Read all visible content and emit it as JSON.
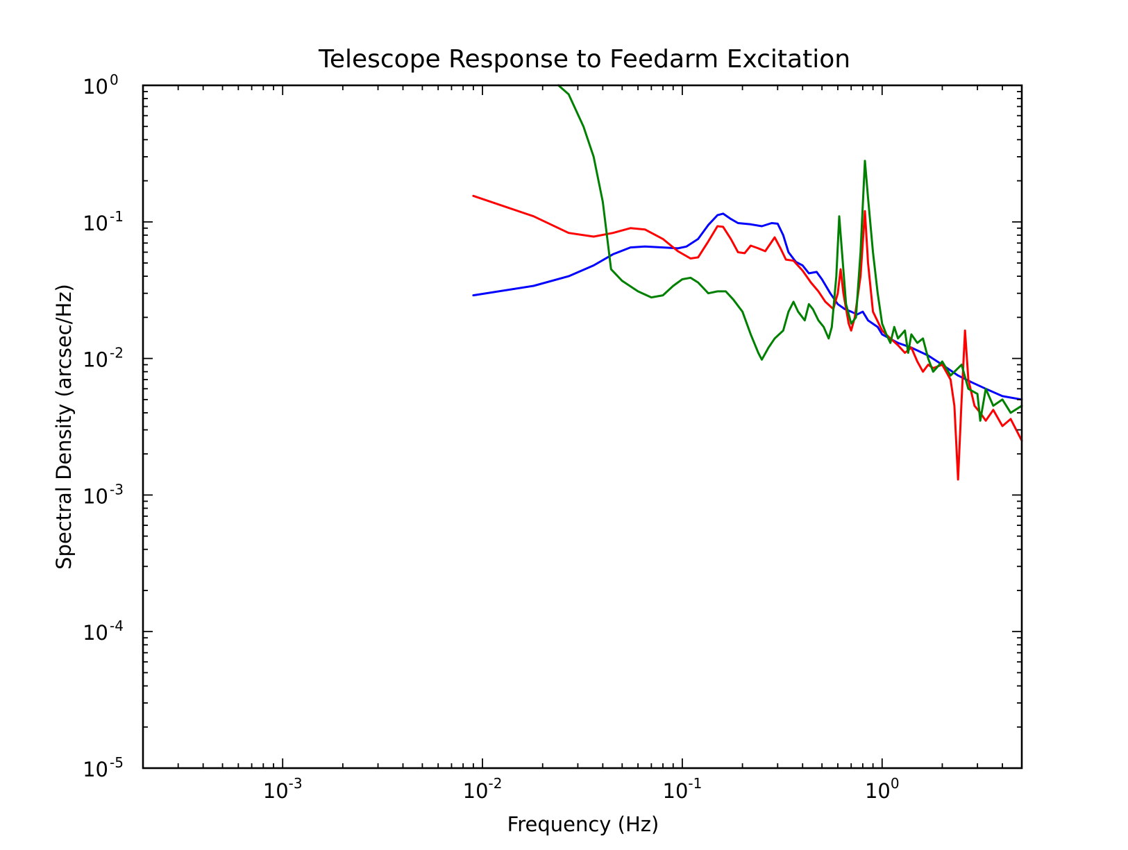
{
  "chart_data": {
    "type": "line",
    "title": "Telescope Response to Feedarm Excitation",
    "xlabel": "Frequency (Hz)",
    "ylabel": "Spectral Density (arcsec/Hz)",
    "xscale": "log",
    "yscale": "log",
    "xlim": [
      0.0002,
      5.0
    ],
    "ylim": [
      1e-05,
      1.0
    ],
    "x_ticks": [
      {
        "value": 0.001,
        "base": "10",
        "exp": "-3"
      },
      {
        "value": 0.01,
        "base": "10",
        "exp": "-2"
      },
      {
        "value": 0.1,
        "base": "10",
        "exp": "-1"
      },
      {
        "value": 1.0,
        "base": "10",
        "exp": "0"
      }
    ],
    "y_ticks": [
      {
        "value": 1.0,
        "base": "10",
        "exp": "0"
      },
      {
        "value": 0.1,
        "base": "10",
        "exp": "-1"
      },
      {
        "value": 0.01,
        "base": "10",
        "exp": "-2"
      },
      {
        "value": 0.001,
        "base": "10",
        "exp": "-3"
      },
      {
        "value": 0.0001,
        "base": "10",
        "exp": "-4"
      },
      {
        "value": 1e-05,
        "base": "10",
        "exp": "-5"
      }
    ],
    "grid": false,
    "legend": false,
    "series": [
      {
        "name": "blue",
        "color": "#0000ff",
        "points": [
          [
            0.009,
            0.029
          ],
          [
            0.018,
            0.034
          ],
          [
            0.027,
            0.04
          ],
          [
            0.036,
            0.048
          ],
          [
            0.045,
            0.058
          ],
          [
            0.055,
            0.065
          ],
          [
            0.065,
            0.066
          ],
          [
            0.08,
            0.065
          ],
          [
            0.095,
            0.064
          ],
          [
            0.105,
            0.066
          ],
          [
            0.12,
            0.075
          ],
          [
            0.135,
            0.095
          ],
          [
            0.15,
            0.112
          ],
          [
            0.16,
            0.115
          ],
          [
            0.175,
            0.105
          ],
          [
            0.19,
            0.098
          ],
          [
            0.22,
            0.096
          ],
          [
            0.25,
            0.093
          ],
          [
            0.28,
            0.098
          ],
          [
            0.3,
            0.097
          ],
          [
            0.32,
            0.08
          ],
          [
            0.34,
            0.06
          ],
          [
            0.37,
            0.051
          ],
          [
            0.4,
            0.048
          ],
          [
            0.43,
            0.042
          ],
          [
            0.47,
            0.043
          ],
          [
            0.5,
            0.038
          ],
          [
            0.55,
            0.03
          ],
          [
            0.6,
            0.025
          ],
          [
            0.65,
            0.023
          ],
          [
            0.7,
            0.022
          ],
          [
            0.75,
            0.021
          ],
          [
            0.8,
            0.022
          ],
          [
            0.85,
            0.019
          ],
          [
            0.95,
            0.017
          ],
          [
            1.0,
            0.015
          ],
          [
            1.2,
            0.013
          ],
          [
            1.4,
            0.012
          ],
          [
            1.7,
            0.0105
          ],
          [
            2.0,
            0.009
          ],
          [
            2.4,
            0.0075
          ],
          [
            2.8,
            0.0067
          ],
          [
            3.3,
            0.006
          ],
          [
            4.0,
            0.0053
          ],
          [
            5.0,
            0.005
          ]
        ]
      },
      {
        "name": "red",
        "color": "#ff0000",
        "points": [
          [
            0.009,
            0.155
          ],
          [
            0.018,
            0.11
          ],
          [
            0.027,
            0.083
          ],
          [
            0.036,
            0.078
          ],
          [
            0.045,
            0.083
          ],
          [
            0.055,
            0.09
          ],
          [
            0.065,
            0.088
          ],
          [
            0.08,
            0.075
          ],
          [
            0.095,
            0.061
          ],
          [
            0.11,
            0.054
          ],
          [
            0.12,
            0.055
          ],
          [
            0.135,
            0.072
          ],
          [
            0.15,
            0.093
          ],
          [
            0.16,
            0.092
          ],
          [
            0.175,
            0.075
          ],
          [
            0.19,
            0.06
          ],
          [
            0.205,
            0.059
          ],
          [
            0.22,
            0.067
          ],
          [
            0.24,
            0.064
          ],
          [
            0.26,
            0.061
          ],
          [
            0.29,
            0.077
          ],
          [
            0.31,
            0.064
          ],
          [
            0.33,
            0.053
          ],
          [
            0.36,
            0.052
          ],
          [
            0.4,
            0.044
          ],
          [
            0.44,
            0.036
          ],
          [
            0.48,
            0.031
          ],
          [
            0.52,
            0.026
          ],
          [
            0.57,
            0.023
          ],
          [
            0.6,
            0.03
          ],
          [
            0.62,
            0.045
          ],
          [
            0.64,
            0.03
          ],
          [
            0.68,
            0.018
          ],
          [
            0.7,
            0.016
          ],
          [
            0.73,
            0.02
          ],
          [
            0.78,
            0.04
          ],
          [
            0.82,
            0.12
          ],
          [
            0.85,
            0.05
          ],
          [
            0.9,
            0.022
          ],
          [
            1.0,
            0.016
          ],
          [
            1.1,
            0.014
          ],
          [
            1.2,
            0.0125
          ],
          [
            1.3,
            0.011
          ],
          [
            1.4,
            0.012
          ],
          [
            1.5,
            0.0095
          ],
          [
            1.6,
            0.008
          ],
          [
            1.7,
            0.009
          ],
          [
            1.8,
            0.0085
          ],
          [
            2.0,
            0.009
          ],
          [
            2.2,
            0.007
          ],
          [
            2.3,
            0.0045
          ],
          [
            2.4,
            0.0013
          ],
          [
            2.5,
            0.005
          ],
          [
            2.6,
            0.016
          ],
          [
            2.7,
            0.007
          ],
          [
            2.9,
            0.0045
          ],
          [
            3.1,
            0.004
          ],
          [
            3.3,
            0.0035
          ],
          [
            3.6,
            0.0042
          ],
          [
            4.0,
            0.0032
          ],
          [
            4.4,
            0.0036
          ],
          [
            5.0,
            0.0025
          ]
        ]
      },
      {
        "name": "green",
        "color": "#008000",
        "points": [
          [
            0.024,
            1.0
          ],
          [
            0.027,
            0.86
          ],
          [
            0.032,
            0.5
          ],
          [
            0.036,
            0.3
          ],
          [
            0.04,
            0.14
          ],
          [
            0.044,
            0.045
          ],
          [
            0.05,
            0.037
          ],
          [
            0.06,
            0.031
          ],
          [
            0.07,
            0.028
          ],
          [
            0.08,
            0.029
          ],
          [
            0.09,
            0.034
          ],
          [
            0.1,
            0.038
          ],
          [
            0.11,
            0.039
          ],
          [
            0.12,
            0.036
          ],
          [
            0.135,
            0.03
          ],
          [
            0.15,
            0.031
          ],
          [
            0.165,
            0.031
          ],
          [
            0.18,
            0.027
          ],
          [
            0.2,
            0.022
          ],
          [
            0.22,
            0.015
          ],
          [
            0.24,
            0.011
          ],
          [
            0.25,
            0.0098
          ],
          [
            0.27,
            0.012
          ],
          [
            0.29,
            0.014
          ],
          [
            0.32,
            0.016
          ],
          [
            0.34,
            0.022
          ],
          [
            0.36,
            0.026
          ],
          [
            0.38,
            0.022
          ],
          [
            0.41,
            0.019
          ],
          [
            0.43,
            0.025
          ],
          [
            0.45,
            0.023
          ],
          [
            0.48,
            0.019
          ],
          [
            0.51,
            0.017
          ],
          [
            0.54,
            0.014
          ],
          [
            0.56,
            0.017
          ],
          [
            0.59,
            0.04
          ],
          [
            0.61,
            0.11
          ],
          [
            0.63,
            0.06
          ],
          [
            0.66,
            0.025
          ],
          [
            0.7,
            0.018
          ],
          [
            0.74,
            0.02
          ],
          [
            0.78,
            0.06
          ],
          [
            0.82,
            0.28
          ],
          [
            0.85,
            0.15
          ],
          [
            0.9,
            0.06
          ],
          [
            0.95,
            0.03
          ],
          [
            1.0,
            0.018
          ],
          [
            1.05,
            0.015
          ],
          [
            1.1,
            0.013
          ],
          [
            1.15,
            0.017
          ],
          [
            1.2,
            0.014
          ],
          [
            1.3,
            0.016
          ],
          [
            1.35,
            0.011
          ],
          [
            1.4,
            0.015
          ],
          [
            1.5,
            0.013
          ],
          [
            1.6,
            0.014
          ],
          [
            1.7,
            0.01
          ],
          [
            1.8,
            0.008
          ],
          [
            2.0,
            0.0095
          ],
          [
            2.2,
            0.0075
          ],
          [
            2.5,
            0.009
          ],
          [
            2.7,
            0.006
          ],
          [
            3.0,
            0.0055
          ],
          [
            3.1,
            0.0035
          ],
          [
            3.3,
            0.006
          ],
          [
            3.6,
            0.0045
          ],
          [
            4.0,
            0.005
          ],
          [
            4.4,
            0.004
          ],
          [
            5.0,
            0.0045
          ]
        ]
      }
    ]
  }
}
